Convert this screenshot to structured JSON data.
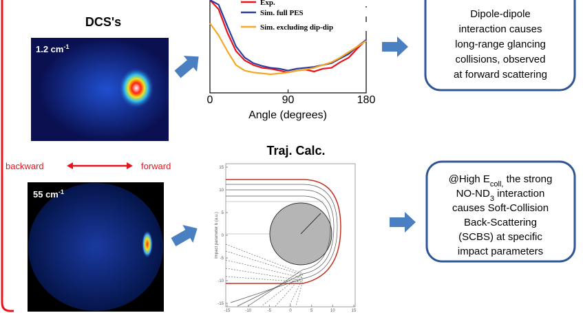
{
  "dcs_title": "DCS's",
  "images": [
    {
      "label": "1.2 cm",
      "label_sup": "-1"
    },
    {
      "label": "55 cm",
      "label_sup": "-1"
    }
  ],
  "direction": {
    "backward": "backward",
    "forward": "forward"
  },
  "chart_data": {
    "type": "line",
    "x_label": "Angle (degrees)",
    "x": [
      0,
      10,
      20,
      30,
      40,
      50,
      60,
      70,
      80,
      90,
      100,
      110,
      120,
      130,
      140,
      150,
      160,
      170,
      180
    ],
    "xlim": [
      0,
      180
    ],
    "xticks": [
      0,
      90,
      180
    ],
    "ylim": [
      0,
      1
    ],
    "series": [
      {
        "name": "Exp.",
        "color": "#e8141c",
        "values": [
          1.0,
          0.9,
          0.65,
          0.45,
          0.35,
          0.3,
          0.27,
          0.26,
          0.24,
          0.22,
          0.24,
          0.25,
          0.23,
          0.26,
          0.27,
          0.33,
          0.38,
          0.48,
          0.57
        ]
      },
      {
        "name": "Sim. full PES",
        "color": "#2b3d9c",
        "values": [
          1.0,
          0.95,
          0.72,
          0.5,
          0.38,
          0.32,
          0.29,
          0.27,
          0.26,
          0.24,
          0.26,
          0.27,
          0.28,
          0.3,
          0.32,
          0.37,
          0.42,
          0.5,
          0.57
        ]
      },
      {
        "name": "Sim. excluding dip-dip",
        "color": "#f5a623",
        "values": [
          0.75,
          0.62,
          0.45,
          0.3,
          0.24,
          0.22,
          0.21,
          0.2,
          0.21,
          0.22,
          0.24,
          0.25,
          0.27,
          0.3,
          0.33,
          0.38,
          0.44,
          0.5,
          0.56
        ]
      }
    ]
  },
  "traj_title": "Traj. Calc.",
  "traj_plot": {
    "xticks": [
      -15,
      -10,
      -5,
      0,
      5,
      10,
      15
    ],
    "yticks": [
      15,
      10,
      5,
      0,
      -5,
      -10,
      -15
    ],
    "y_label": "Impact parameter b (a.u.)"
  },
  "box1_lines": [
    "Dipole-dipole",
    "interaction causes",
    "long-range glancing",
    "collisions, observed",
    "at forward scattering"
  ],
  "box2_lines": [
    [
      {
        "text": "@High E"
      },
      {
        "text": "coll,",
        "sub": true
      },
      {
        "text": " the strong"
      }
    ],
    [
      {
        "text": "NO-ND"
      },
      {
        "text": "3",
        "sub": true
      },
      {
        "text": " interaction"
      }
    ],
    [
      {
        "text": "causes Soft-Collision"
      }
    ],
    [
      {
        "text": "Back-Scattering"
      }
    ],
    [
      {
        "text": "(SCBS) at specific"
      }
    ],
    [
      {
        "text": "impact parameters"
      }
    ]
  ]
}
